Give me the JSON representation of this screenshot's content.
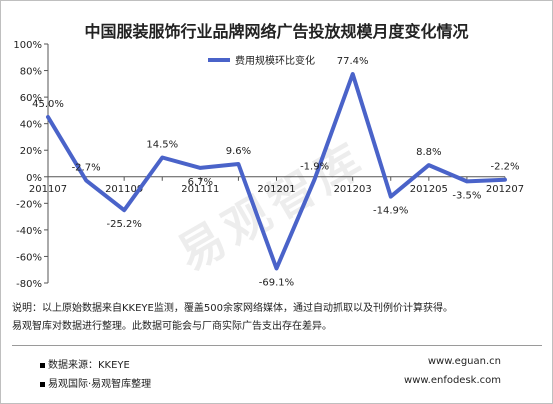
{
  "title": "中国服装服饰行业品牌网络广告投放规模月度变化情况",
  "watermark": "易观智库",
  "notes": [
    "说明：以上原始数据来自KKEYE监测，覆盖500余家网络媒体，通过自动抓取以及刊例价计算获得。",
    "易观智库对数据进行整理。此数据可能会与厂商实际广告支出存在差异。"
  ],
  "footer": {
    "source": "数据来源：KKEYE",
    "org": "易观国际·易观智库整理",
    "url1": "www.eguan.cn",
    "url2": "www.enfodesk.com"
  },
  "chart_data": {
    "type": "line",
    "title": "中国服装服饰行业品牌网络广告投放规模月度变化情况",
    "x": [
      "201107",
      "201108",
      "201109",
      "201110",
      "201111",
      "201112",
      "201201",
      "201202",
      "201203",
      "201204",
      "201205",
      "201206",
      "201207"
    ],
    "x_tick_labels": [
      "201107",
      "201109",
      "201111",
      "201201",
      "201203",
      "201205",
      "201207"
    ],
    "series": [
      {
        "name": "费用规模环比变化",
        "color": "#4a63c9",
        "values": [
          45.0,
          -2.7,
          -25.2,
          14.5,
          6.7,
          9.6,
          -69.1,
          -1.9,
          77.4,
          -14.9,
          8.8,
          -3.5,
          -2.2
        ],
        "labels": [
          "45.0%",
          "-2.7%",
          "-25.2%",
          "14.5%",
          "6.7%",
          "9.6%",
          "-69.1%",
          "-1.9%",
          "77.4%",
          "-14.9%",
          "8.8%",
          "-3.5%",
          "-2.2%"
        ]
      }
    ],
    "y_tick_labels": [
      "100%",
      "80%",
      "60%",
      "40%",
      "20%",
      "0%",
      "-20%",
      "-40%",
      "-60%",
      "-80%"
    ],
    "ylim": [
      -80,
      100
    ],
    "grid": false,
    "legend": "top-center"
  }
}
